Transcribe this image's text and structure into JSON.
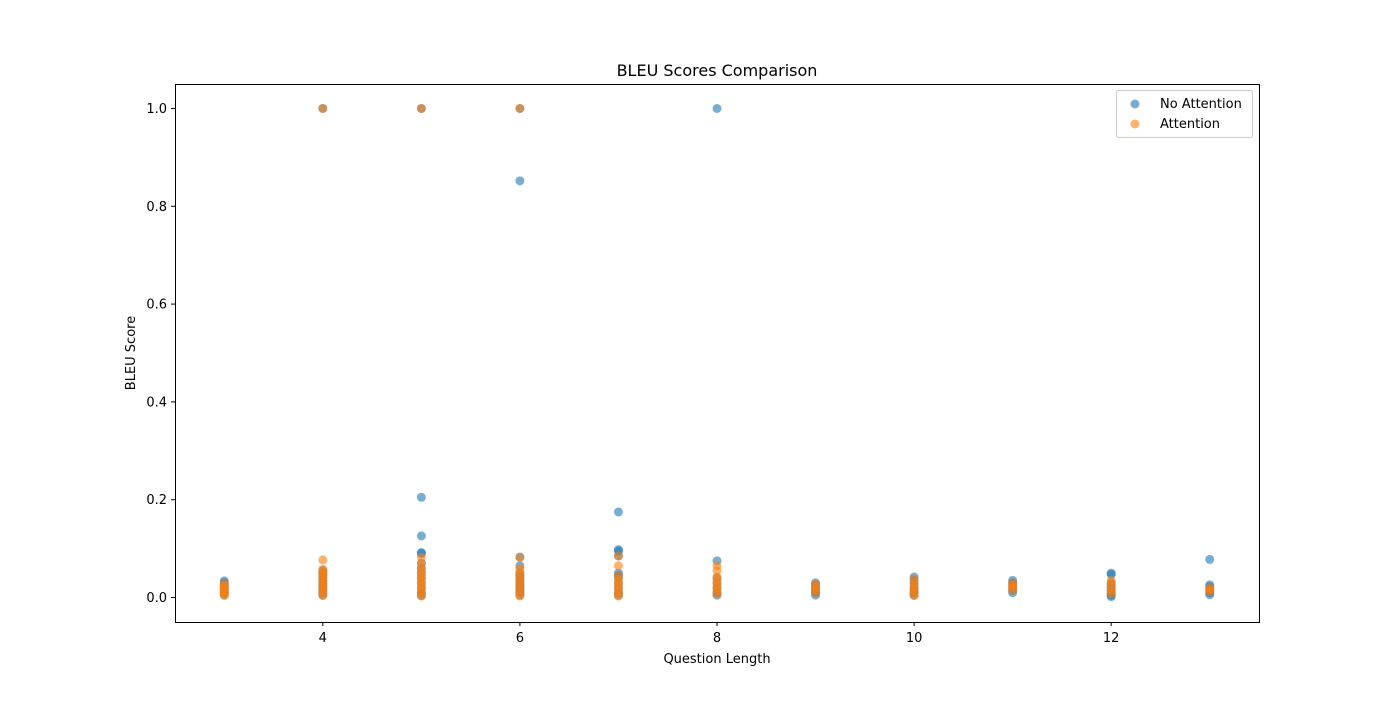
{
  "chart_data": {
    "type": "scatter",
    "title": "BLEU Scores Comparison",
    "xlabel": "Question Length",
    "ylabel": "BLEU Score",
    "xlim": [
      2.5,
      13.5
    ],
    "ylim": [
      -0.05,
      1.05
    ],
    "x_ticks": [
      4,
      6,
      8,
      10,
      12
    ],
    "y_ticks": [
      0.0,
      0.2,
      0.4,
      0.6,
      0.8,
      1.0
    ],
    "x_tick_labels": [
      "4",
      "6",
      "8",
      "10",
      "12"
    ],
    "y_tick_labels": [
      "0.0",
      "0.2",
      "0.4",
      "0.6",
      "0.8",
      "1.0"
    ],
    "grid": false,
    "legend_position": "top-right",
    "series": [
      {
        "name": "No Attention",
        "color": "#1f77b4",
        "points": [
          [
            3,
            0.034
          ],
          [
            3,
            0.03
          ],
          [
            3,
            0.026
          ],
          [
            3,
            0.022
          ],
          [
            3,
            0.018
          ],
          [
            3,
            0.014
          ],
          [
            3,
            0.01
          ],
          [
            3,
            0.006
          ],
          [
            4,
            1.0
          ],
          [
            4,
            0.055
          ],
          [
            4,
            0.05
          ],
          [
            4,
            0.045
          ],
          [
            4,
            0.04
          ],
          [
            4,
            0.035
          ],
          [
            4,
            0.03
          ],
          [
            4,
            0.025
          ],
          [
            4,
            0.02
          ],
          [
            4,
            0.015
          ],
          [
            4,
            0.01
          ],
          [
            4,
            0.005
          ],
          [
            5,
            1.0
          ],
          [
            5,
            0.205
          ],
          [
            5,
            0.126
          ],
          [
            5,
            0.092
          ],
          [
            5,
            0.09
          ],
          [
            5,
            0.07
          ],
          [
            5,
            0.06
          ],
          [
            5,
            0.05
          ],
          [
            5,
            0.04
          ],
          [
            5,
            0.03
          ],
          [
            5,
            0.02
          ],
          [
            5,
            0.01
          ],
          [
            5,
            0.004
          ],
          [
            6,
            1.0
          ],
          [
            6,
            0.852
          ],
          [
            6,
            0.083
          ],
          [
            6,
            0.065
          ],
          [
            6,
            0.05
          ],
          [
            6,
            0.045
          ],
          [
            6,
            0.04
          ],
          [
            6,
            0.035
          ],
          [
            6,
            0.03
          ],
          [
            6,
            0.025
          ],
          [
            6,
            0.02
          ],
          [
            6,
            0.015
          ],
          [
            6,
            0.01
          ],
          [
            6,
            0.005
          ],
          [
            7,
            0.175
          ],
          [
            7,
            0.098
          ],
          [
            7,
            0.095
          ],
          [
            7,
            0.085
          ],
          [
            7,
            0.05
          ],
          [
            7,
            0.045
          ],
          [
            7,
            0.04
          ],
          [
            7,
            0.03
          ],
          [
            7,
            0.02
          ],
          [
            7,
            0.01
          ],
          [
            7,
            0.005
          ],
          [
            8,
            1.0
          ],
          [
            8,
            0.075
          ],
          [
            8,
            0.04
          ],
          [
            8,
            0.03
          ],
          [
            8,
            0.02
          ],
          [
            8,
            0.01
          ],
          [
            8,
            0.005
          ],
          [
            9,
            0.03
          ],
          [
            9,
            0.025
          ],
          [
            9,
            0.02
          ],
          [
            9,
            0.015
          ],
          [
            9,
            0.01
          ],
          [
            9,
            0.005
          ],
          [
            10,
            0.042
          ],
          [
            10,
            0.035
          ],
          [
            10,
            0.028
          ],
          [
            10,
            0.02
          ],
          [
            10,
            0.015
          ],
          [
            10,
            0.01
          ],
          [
            10,
            0.005
          ],
          [
            11,
            0.035
          ],
          [
            11,
            0.03
          ],
          [
            11,
            0.025
          ],
          [
            11,
            0.02
          ],
          [
            11,
            0.015
          ],
          [
            11,
            0.01
          ],
          [
            12,
            0.05
          ],
          [
            12,
            0.047
          ],
          [
            12,
            0.03
          ],
          [
            12,
            0.025
          ],
          [
            12,
            0.02
          ],
          [
            12,
            0.015
          ],
          [
            12,
            0.01
          ],
          [
            12,
            0.005
          ],
          [
            12,
            0.002
          ],
          [
            13,
            0.078
          ],
          [
            13,
            0.026
          ],
          [
            13,
            0.022
          ],
          [
            13,
            0.018
          ],
          [
            13,
            0.014
          ],
          [
            13,
            0.01
          ],
          [
            13,
            0.006
          ]
        ]
      },
      {
        "name": "Attention",
        "color": "#ff7f0e",
        "points": [
          [
            3,
            0.028
          ],
          [
            3,
            0.024
          ],
          [
            3,
            0.02
          ],
          [
            3,
            0.016
          ],
          [
            3,
            0.012
          ],
          [
            3,
            0.008
          ],
          [
            3,
            0.004
          ],
          [
            4,
            1.0
          ],
          [
            4,
            0.077
          ],
          [
            4,
            0.058
          ],
          [
            4,
            0.052
          ],
          [
            4,
            0.046
          ],
          [
            4,
            0.04
          ],
          [
            4,
            0.034
          ],
          [
            4,
            0.028
          ],
          [
            4,
            0.022
          ],
          [
            4,
            0.016
          ],
          [
            4,
            0.01
          ],
          [
            4,
            0.004
          ],
          [
            5,
            1.0
          ],
          [
            5,
            0.082
          ],
          [
            5,
            0.07
          ],
          [
            5,
            0.06
          ],
          [
            5,
            0.052
          ],
          [
            5,
            0.045
          ],
          [
            5,
            0.038
          ],
          [
            5,
            0.031
          ],
          [
            5,
            0.024
          ],
          [
            5,
            0.017
          ],
          [
            5,
            0.01
          ],
          [
            5,
            0.003
          ],
          [
            6,
            1.0
          ],
          [
            6,
            0.082
          ],
          [
            6,
            0.06
          ],
          [
            6,
            0.052
          ],
          [
            6,
            0.045
          ],
          [
            6,
            0.038
          ],
          [
            6,
            0.031
          ],
          [
            6,
            0.024
          ],
          [
            6,
            0.017
          ],
          [
            6,
            0.01
          ],
          [
            6,
            0.003
          ],
          [
            7,
            0.085
          ],
          [
            7,
            0.065
          ],
          [
            7,
            0.045
          ],
          [
            7,
            0.038
          ],
          [
            7,
            0.031
          ],
          [
            7,
            0.024
          ],
          [
            7,
            0.017
          ],
          [
            7,
            0.01
          ],
          [
            7,
            0.003
          ],
          [
            8,
            0.065
          ],
          [
            8,
            0.055
          ],
          [
            8,
            0.042
          ],
          [
            8,
            0.035
          ],
          [
            8,
            0.028
          ],
          [
            8,
            0.021
          ],
          [
            8,
            0.014
          ],
          [
            8,
            0.007
          ],
          [
            9,
            0.028
          ],
          [
            9,
            0.022
          ],
          [
            9,
            0.016
          ],
          [
            9,
            0.01
          ],
          [
            10,
            0.038
          ],
          [
            10,
            0.03
          ],
          [
            10,
            0.022
          ],
          [
            10,
            0.016
          ],
          [
            10,
            0.01
          ],
          [
            10,
            0.004
          ],
          [
            11,
            0.03
          ],
          [
            11,
            0.025
          ],
          [
            11,
            0.02
          ],
          [
            11,
            0.015
          ],
          [
            12,
            0.035
          ],
          [
            12,
            0.028
          ],
          [
            12,
            0.021
          ],
          [
            12,
            0.014
          ],
          [
            12,
            0.008
          ],
          [
            13,
            0.02
          ],
          [
            13,
            0.016
          ],
          [
            13,
            0.012
          ]
        ]
      }
    ]
  }
}
